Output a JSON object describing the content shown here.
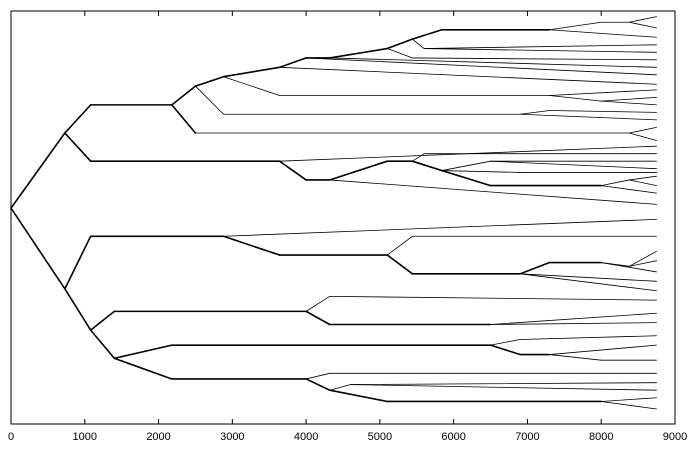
{
  "chart_data": {
    "type": "tree",
    "title": "",
    "xlabel": "",
    "ylabel": "",
    "xlim": [
      0,
      9000
    ],
    "xticks": [
      0,
      1000,
      2000,
      3000,
      4000,
      5000,
      6000,
      7000,
      8000,
      9000
    ],
    "xtick_labels": [
      "0",
      "1000",
      "2000",
      "3000",
      "4000",
      "5000",
      "6000",
      "7000",
      "8000",
      "9000"
    ],
    "grid": false,
    "legend": "none",
    "colors": {
      "line": "#000000",
      "frame": "#000000",
      "background": "#ffffff"
    },
    "nodes": [
      {
        "id": "root",
        "x": 0,
        "y": 9.5,
        "parent": null
      },
      {
        "id": "U",
        "x": 730,
        "y": 5.5,
        "parent": "root"
      },
      {
        "id": "U1",
        "x": 1080,
        "y": 4,
        "parent": "U"
      },
      {
        "id": "U11",
        "x": 2180,
        "y": 4,
        "parent": "U1"
      },
      {
        "id": "U111",
        "x": 2500,
        "y": 3,
        "parent": "U11"
      },
      {
        "id": "U1111",
        "x": 2880,
        "y": 2.5,
        "parent": "U111"
      },
      {
        "id": "U11111",
        "x": 3640,
        "y": 2,
        "parent": "U1111"
      },
      {
        "id": "U111111",
        "x": 4000,
        "y": 1.5,
        "parent": "U11111"
      },
      {
        "id": "U1111111",
        "x": 4320,
        "y": 1.5,
        "parent": "U111111"
      },
      {
        "id": "U11111111",
        "x": 5100,
        "y": 1,
        "parent": "U1111111"
      },
      {
        "id": "U111111111",
        "x": 5440,
        "y": 0.5,
        "parent": "U11111111"
      },
      {
        "id": "U1111111111",
        "x": 5840,
        "y": 0,
        "parent": "U111111111"
      },
      {
        "id": "U11111111111",
        "x": 7300,
        "y": 0,
        "parent": "U1111111111"
      },
      {
        "id": "U111111111111",
        "x": 8000,
        "y": -0.4,
        "parent": "U11111111111"
      },
      {
        "id": "U1111111111111",
        "x": 8380,
        "y": -0.4,
        "parent": "U111111111111"
      },
      {
        "id": "L1",
        "x": 8750,
        "y": -0.7,
        "parent": "U1111111111111"
      },
      {
        "id": "L2",
        "x": 8750,
        "y": -0.1,
        "parent": "U1111111111111"
      },
      {
        "id": "L3",
        "x": 8750,
        "y": 0.4,
        "parent": "U11111111111"
      },
      {
        "id": "U1111111112",
        "x": 5600,
        "y": 1,
        "parent": "U111111111"
      },
      {
        "id": "L4",
        "x": 8750,
        "y": 0.8,
        "parent": "U1111111112"
      },
      {
        "id": "L5",
        "x": 8750,
        "y": 1.2,
        "parent": "U1111111112"
      },
      {
        "id": "U111111112",
        "x": 5440,
        "y": 1.5,
        "parent": "U11111111"
      },
      {
        "id": "L6",
        "x": 8750,
        "y": 1.6,
        "parent": "U111111112"
      },
      {
        "id": "L7",
        "x": 8750,
        "y": 2.0,
        "parent": "U1111111"
      },
      {
        "id": "L8",
        "x": 8750,
        "y": 2.4,
        "parent": "U111111"
      },
      {
        "id": "L9",
        "x": 8750,
        "y": 2.9,
        "parent": "U11111"
      },
      {
        "id": "U11112",
        "x": 3640,
        "y": 3.5,
        "parent": "U1111"
      },
      {
        "id": "U111121",
        "x": 7300,
        "y": 3.5,
        "parent": "U11112"
      },
      {
        "id": "L10",
        "x": 8750,
        "y": 3.2,
        "parent": "U111121"
      },
      {
        "id": "U1111212",
        "x": 8000,
        "y": 3.8,
        "parent": "U111121"
      },
      {
        "id": "L11",
        "x": 8750,
        "y": 3.6,
        "parent": "U1111212"
      },
      {
        "id": "L12",
        "x": 8750,
        "y": 4.0,
        "parent": "U1111212"
      },
      {
        "id": "U1112",
        "x": 2880,
        "y": 4.5,
        "parent": "U111"
      },
      {
        "id": "U11121",
        "x": 6900,
        "y": 4.5,
        "parent": "U1112"
      },
      {
        "id": "U111211",
        "x": 7300,
        "y": 4.3,
        "parent": "U11121"
      },
      {
        "id": "L13",
        "x": 8750,
        "y": 4.4,
        "parent": "U111211"
      },
      {
        "id": "L14",
        "x": 8750,
        "y": 4.8,
        "parent": "U11121"
      },
      {
        "id": "U112",
        "x": 2500,
        "y": 5.5,
        "parent": "U11"
      },
      {
        "id": "U1121",
        "x": 8380,
        "y": 5.5,
        "parent": "U112"
      },
      {
        "id": "L15",
        "x": 8750,
        "y": 5.2,
        "parent": "U1121"
      },
      {
        "id": "L16",
        "x": 8750,
        "y": 5.9,
        "parent": "U1121"
      },
      {
        "id": "U2",
        "x": 1080,
        "y": 7,
        "parent": "U"
      },
      {
        "id": "U21",
        "x": 3640,
        "y": 7,
        "parent": "U2"
      },
      {
        "id": "L17",
        "x": 8750,
        "y": 6.2,
        "parent": "U21"
      },
      {
        "id": "U212",
        "x": 4000,
        "y": 8,
        "parent": "U21"
      },
      {
        "id": "U2121",
        "x": 4320,
        "y": 8,
        "parent": "U212"
      },
      {
        "id": "U21211",
        "x": 5100,
        "y": 7,
        "parent": "U2121"
      },
      {
        "id": "U212111",
        "x": 5440,
        "y": 7,
        "parent": "U21211"
      },
      {
        "id": "U2121111",
        "x": 5600,
        "y": 6.6,
        "parent": "U212111"
      },
      {
        "id": "L18",
        "x": 8750,
        "y": 6.6,
        "parent": "U2121111"
      },
      {
        "id": "U2121112",
        "x": 5840,
        "y": 7.5,
        "parent": "U212111"
      },
      {
        "id": "U21211121",
        "x": 6500,
        "y": 7,
        "parent": "U2121112"
      },
      {
        "id": "L19",
        "x": 8750,
        "y": 7.0,
        "parent": "U21211121"
      },
      {
        "id": "L20",
        "x": 8750,
        "y": 7.4,
        "parent": "U21211121"
      },
      {
        "id": "U21211122",
        "x": 6900,
        "y": 7.6,
        "parent": "U2121112"
      },
      {
        "id": "L21",
        "x": 8750,
        "y": 7.6,
        "parent": "U21211122"
      },
      {
        "id": "U21211123",
        "x": 6500,
        "y": 8.3,
        "parent": "U2121112"
      },
      {
        "id": "U212111231",
        "x": 8000,
        "y": 8.3,
        "parent": "U21211123"
      },
      {
        "id": "U2121112311",
        "x": 8380,
        "y": 8.0,
        "parent": "U212111231"
      },
      {
        "id": "L22",
        "x": 8750,
        "y": 7.8,
        "parent": "U2121112311"
      },
      {
        "id": "L23",
        "x": 8750,
        "y": 8.3,
        "parent": "U2121112311"
      },
      {
        "id": "L24",
        "x": 8750,
        "y": 8.7,
        "parent": "U212111231"
      },
      {
        "id": "L25",
        "x": 8750,
        "y": 9.3,
        "parent": "U2121"
      },
      {
        "id": "D",
        "x": 730,
        "y": 13.8,
        "parent": "root"
      },
      {
        "id": "D1",
        "x": 1080,
        "y": 11,
        "parent": "D"
      },
      {
        "id": "D11",
        "x": 2880,
        "y": 11,
        "parent": "D1"
      },
      {
        "id": "L26",
        "x": 8750,
        "y": 10.1,
        "parent": "D11"
      },
      {
        "id": "D112",
        "x": 3640,
        "y": 12,
        "parent": "D11"
      },
      {
        "id": "D1121",
        "x": 5100,
        "y": 12,
        "parent": "D112"
      },
      {
        "id": "D11211",
        "x": 5440,
        "y": 11,
        "parent": "D1121"
      },
      {
        "id": "L27",
        "x": 8750,
        "y": 11.0,
        "parent": "D11211"
      },
      {
        "id": "D11212",
        "x": 5440,
        "y": 13,
        "parent": "D1121"
      },
      {
        "id": "D112121",
        "x": 6900,
        "y": 13,
        "parent": "D11212"
      },
      {
        "id": "D1121211",
        "x": 7300,
        "y": 12.4,
        "parent": "D112121"
      },
      {
        "id": "D11212111",
        "x": 8000,
        "y": 12.4,
        "parent": "D1121211"
      },
      {
        "id": "D112121111",
        "x": 8380,
        "y": 12.6,
        "parent": "D11212111"
      },
      {
        "id": "L28",
        "x": 8750,
        "y": 11.8,
        "parent": "D112121111"
      },
      {
        "id": "L29",
        "x": 8750,
        "y": 12.3,
        "parent": "D112121111"
      },
      {
        "id": "L30",
        "x": 8750,
        "y": 12.9,
        "parent": "D11212111"
      },
      {
        "id": "L31",
        "x": 8750,
        "y": 13.4,
        "parent": "D112121"
      },
      {
        "id": "L32",
        "x": 8750,
        "y": 13.9,
        "parent": "D112121"
      },
      {
        "id": "D2",
        "x": 1080,
        "y": 16,
        "parent": "D"
      },
      {
        "id": "D21",
        "x": 1400,
        "y": 15,
        "parent": "D2"
      },
      {
        "id": "D211",
        "x": 4000,
        "y": 15,
        "parent": "D21"
      },
      {
        "id": "D2111",
        "x": 4320,
        "y": 14.2,
        "parent": "D211"
      },
      {
        "id": "L33",
        "x": 8750,
        "y": 14.4,
        "parent": "D2111"
      },
      {
        "id": "D2112",
        "x": 4320,
        "y": 15.7,
        "parent": "D211"
      },
      {
        "id": "D21121",
        "x": 6500,
        "y": 15.7,
        "parent": "D2112"
      },
      {
        "id": "L34",
        "x": 8750,
        "y": 15.1,
        "parent": "D21121"
      },
      {
        "id": "L35",
        "x": 8750,
        "y": 15.6,
        "parent": "D21121"
      },
      {
        "id": "D22",
        "x": 1400,
        "y": 17.5,
        "parent": "D2"
      },
      {
        "id": "D221",
        "x": 2180,
        "y": 16.8,
        "parent": "D22"
      },
      {
        "id": "D2211",
        "x": 6500,
        "y": 16.8,
        "parent": "D221"
      },
      {
        "id": "D22111",
        "x": 6900,
        "y": 16.5,
        "parent": "D2211"
      },
      {
        "id": "L36",
        "x": 8750,
        "y": 16.3,
        "parent": "D22111"
      },
      {
        "id": "D22112",
        "x": 6900,
        "y": 17.3,
        "parent": "D2211"
      },
      {
        "id": "D221121",
        "x": 7300,
        "y": 17.3,
        "parent": "D22112"
      },
      {
        "id": "L37",
        "x": 8750,
        "y": 16.8,
        "parent": "D221121"
      },
      {
        "id": "D2211212",
        "x": 8000,
        "y": 17.6,
        "parent": "D221121"
      },
      {
        "id": "L38",
        "x": 8750,
        "y": 17.6,
        "parent": "D2211212"
      },
      {
        "id": "D222",
        "x": 2180,
        "y": 18.6,
        "parent": "D22"
      },
      {
        "id": "D2221",
        "x": 4000,
        "y": 18.6,
        "parent": "D222"
      },
      {
        "id": "D22211",
        "x": 4320,
        "y": 18.3,
        "parent": "D2221"
      },
      {
        "id": "L39",
        "x": 8750,
        "y": 18.3,
        "parent": "D22211"
      },
      {
        "id": "D22212",
        "x": 4320,
        "y": 19.2,
        "parent": "D2221"
      },
      {
        "id": "D222121",
        "x": 4600,
        "y": 18.9,
        "parent": "D22212"
      },
      {
        "id": "L40",
        "x": 8750,
        "y": 18.8,
        "parent": "D222121"
      },
      {
        "id": "L41",
        "x": 8750,
        "y": 19.2,
        "parent": "D222121"
      },
      {
        "id": "D222122",
        "x": 5100,
        "y": 19.8,
        "parent": "D22212"
      },
      {
        "id": "D2221221",
        "x": 8000,
        "y": 19.8,
        "parent": "D222122"
      },
      {
        "id": "L42",
        "x": 8750,
        "y": 19.6,
        "parent": "D2221221"
      },
      {
        "id": "L43",
        "x": 8750,
        "y": 20.2,
        "parent": "D2221221"
      }
    ],
    "thick_edges": [
      "U",
      "U1",
      "U11",
      "U111",
      "U1111",
      "U11111",
      "U111111",
      "U1111111",
      "U11111111",
      "U111111111",
      "U1111111111",
      "U11111111111",
      "U112",
      "U2",
      "U21",
      "U212",
      "U2121",
      "U21211",
      "U212111",
      "U2121112",
      "U21211123",
      "U212111231",
      "D",
      "D1",
      "D11",
      "D112",
      "D1121",
      "D11212",
      "D112121",
      "D1121211",
      "D11212111",
      "D2",
      "D21",
      "D211",
      "D2112",
      "D21121",
      "D22",
      "D221",
      "D2211",
      "D22112",
      "D221121",
      "D222",
      "D2221",
      "D22212",
      "D222122",
      "D2221221"
    ]
  }
}
